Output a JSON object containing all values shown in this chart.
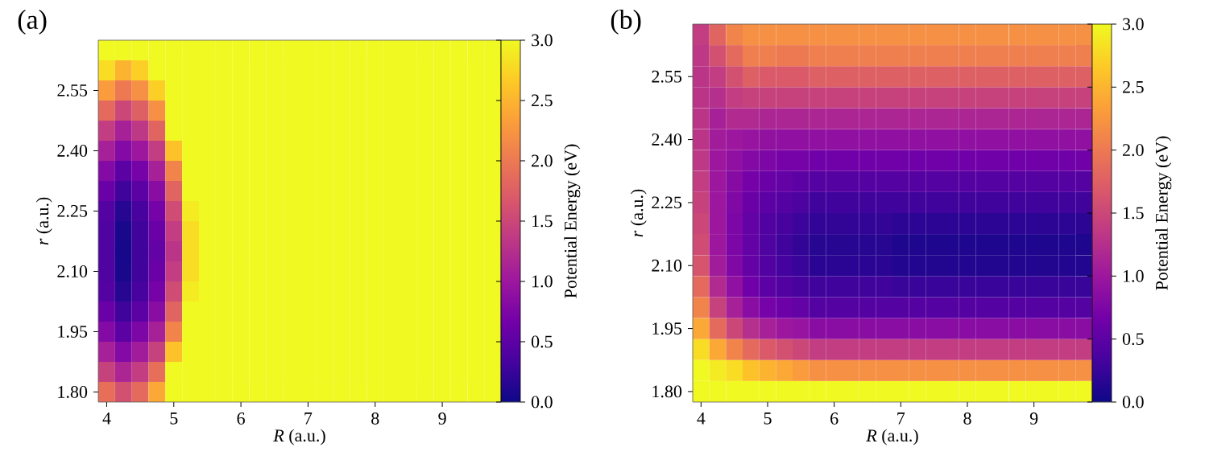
{
  "chart_data": [
    {
      "type": "heatmap",
      "title": "(a)",
      "xlabel": "*R* (a.u.)",
      "ylabel": "*r* (a.u.)",
      "clabel": "Potential Energy (eV)",
      "clim": [
        0,
        3
      ],
      "cticks": [
        {
          "value": 0,
          "label": "0.0"
        },
        0.5,
        {
          "value": 1,
          "label": "1.0"
        },
        1.5,
        {
          "value": 2,
          "label": "2.0"
        },
        2.5,
        {
          "value": 3,
          "label": "3.0"
        }
      ],
      "categories": [
        "4",
        null,
        null,
        null,
        "5",
        null,
        null,
        null,
        "6",
        null,
        null,
        null,
        "7",
        null,
        null,
        null,
        "8",
        null,
        null,
        null,
        "9",
        null,
        null,
        null
      ],
      "y_categories": [
        null,
        null,
        "2.55",
        null,
        null,
        "2.40",
        null,
        null,
        "2.25",
        null,
        null,
        "2.10",
        null,
        null,
        "1.95",
        null,
        null,
        "1.80"
      ],
      "cells": [
        [
          3.0,
          3.0,
          3.0,
          3.0,
          3.0,
          3.0,
          3.0,
          3.0,
          3.0,
          3.0,
          3.0,
          3.0,
          3.0,
          3.0,
          3.0,
          3.0,
          3.0,
          3.0,
          3.0,
          3.0,
          3.0,
          3.0,
          3.0,
          3.0
        ],
        [
          2.8,
          2.5,
          2.7,
          3.0,
          3.0,
          3.0,
          3.0,
          3.0,
          3.0,
          3.0,
          3.0,
          3.0,
          3.0,
          3.0,
          3.0,
          3.0,
          3.0,
          3.0,
          3.0,
          3.0,
          3.0,
          3.0,
          3.0,
          3.0
        ],
        [
          2.3,
          2.0,
          2.2,
          2.7,
          3.0,
          3.0,
          3.0,
          3.0,
          3.0,
          3.0,
          3.0,
          3.0,
          3.0,
          3.0,
          3.0,
          3.0,
          3.0,
          3.0,
          3.0,
          3.0,
          3.0,
          3.0,
          3.0,
          3.0
        ],
        [
          1.85,
          1.5,
          1.75,
          2.2,
          3.0,
          3.0,
          3.0,
          3.0,
          3.0,
          3.0,
          3.0,
          3.0,
          3.0,
          3.0,
          3.0,
          3.0,
          3.0,
          3.0,
          3.0,
          3.0,
          3.0,
          3.0,
          3.0,
          3.0
        ],
        [
          1.4,
          1.1,
          1.35,
          1.8,
          3.0,
          3.0,
          3.0,
          3.0,
          3.0,
          3.0,
          3.0,
          3.0,
          3.0,
          3.0,
          3.0,
          3.0,
          3.0,
          3.0,
          3.0,
          3.0,
          3.0,
          3.0,
          3.0,
          3.0
        ],
        [
          1.1,
          0.8,
          1.0,
          1.4,
          2.6,
          3.0,
          3.0,
          3.0,
          3.0,
          3.0,
          3.0,
          3.0,
          3.0,
          3.0,
          3.0,
          3.0,
          3.0,
          3.0,
          3.0,
          3.0,
          3.0,
          3.0,
          3.0,
          3.0
        ],
        [
          0.8,
          0.5,
          0.7,
          1.1,
          2.1,
          3.0,
          3.0,
          3.0,
          3.0,
          3.0,
          3.0,
          3.0,
          3.0,
          3.0,
          3.0,
          3.0,
          3.0,
          3.0,
          3.0,
          3.0,
          3.0,
          3.0,
          3.0,
          3.0
        ],
        [
          0.6,
          0.3,
          0.5,
          0.85,
          1.8,
          3.0,
          3.0,
          3.0,
          3.0,
          3.0,
          3.0,
          3.0,
          3.0,
          3.0,
          3.0,
          3.0,
          3.0,
          3.0,
          3.0,
          3.0,
          3.0,
          3.0,
          3.0,
          3.0
        ],
        [
          0.45,
          0.15,
          0.35,
          0.7,
          1.55,
          2.9,
          3.0,
          3.0,
          3.0,
          3.0,
          3.0,
          3.0,
          3.0,
          3.0,
          3.0,
          3.0,
          3.0,
          3.0,
          3.0,
          3.0,
          3.0,
          3.0,
          3.0,
          3.0
        ],
        [
          0.4,
          0.07,
          0.3,
          0.6,
          1.4,
          2.8,
          3.0,
          3.0,
          3.0,
          3.0,
          3.0,
          3.0,
          3.0,
          3.0,
          3.0,
          3.0,
          3.0,
          3.0,
          3.0,
          3.0,
          3.0,
          3.0,
          3.0,
          3.0
        ],
        [
          0.4,
          0.05,
          0.3,
          0.55,
          1.3,
          2.8,
          3.0,
          3.0,
          3.0,
          3.0,
          3.0,
          3.0,
          3.0,
          3.0,
          3.0,
          3.0,
          3.0,
          3.0,
          3.0,
          3.0,
          3.0,
          3.0,
          3.0,
          3.0
        ],
        [
          0.4,
          0.07,
          0.3,
          0.6,
          1.4,
          2.8,
          3.0,
          3.0,
          3.0,
          3.0,
          3.0,
          3.0,
          3.0,
          3.0,
          3.0,
          3.0,
          3.0,
          3.0,
          3.0,
          3.0,
          3.0,
          3.0,
          3.0,
          3.0
        ],
        [
          0.45,
          0.15,
          0.35,
          0.7,
          1.55,
          2.9,
          3.0,
          3.0,
          3.0,
          3.0,
          3.0,
          3.0,
          3.0,
          3.0,
          3.0,
          3.0,
          3.0,
          3.0,
          3.0,
          3.0,
          3.0,
          3.0,
          3.0,
          3.0
        ],
        [
          0.6,
          0.3,
          0.5,
          0.85,
          1.8,
          3.0,
          3.0,
          3.0,
          3.0,
          3.0,
          3.0,
          3.0,
          3.0,
          3.0,
          3.0,
          3.0,
          3.0,
          3.0,
          3.0,
          3.0,
          3.0,
          3.0,
          3.0,
          3.0
        ],
        [
          0.8,
          0.5,
          0.75,
          1.1,
          2.1,
          3.0,
          3.0,
          3.0,
          3.0,
          3.0,
          3.0,
          3.0,
          3.0,
          3.0,
          3.0,
          3.0,
          3.0,
          3.0,
          3.0,
          3.0,
          3.0,
          3.0,
          3.0,
          3.0
        ],
        [
          1.1,
          0.8,
          1.05,
          1.45,
          2.6,
          3.0,
          3.0,
          3.0,
          3.0,
          3.0,
          3.0,
          3.0,
          3.0,
          3.0,
          3.0,
          3.0,
          3.0,
          3.0,
          3.0,
          3.0,
          3.0,
          3.0,
          3.0,
          3.0
        ],
        [
          1.45,
          1.15,
          1.4,
          1.9,
          3.0,
          3.0,
          3.0,
          3.0,
          3.0,
          3.0,
          3.0,
          3.0,
          3.0,
          3.0,
          3.0,
          3.0,
          3.0,
          3.0,
          3.0,
          3.0,
          3.0,
          3.0,
          3.0,
          3.0
        ],
        [
          1.9,
          1.6,
          1.85,
          2.4,
          3.0,
          3.0,
          3.0,
          3.0,
          3.0,
          3.0,
          3.0,
          3.0,
          3.0,
          3.0,
          3.0,
          3.0,
          3.0,
          3.0,
          3.0,
          3.0,
          3.0,
          3.0,
          3.0,
          3.0
        ]
      ]
    },
    {
      "type": "heatmap",
      "title": "(b)",
      "xlabel": "*R* (a.u.)",
      "ylabel": "*r* (a.u.)",
      "clabel": "Potential Energy (eV)",
      "clim": [
        0,
        3
      ],
      "cticks": [
        {
          "value": 0,
          "label": "0.0"
        },
        0.5,
        {
          "value": 1,
          "label": "1.0"
        },
        1.5,
        {
          "value": 2,
          "label": "2.0"
        },
        2.5,
        {
          "value": 3,
          "label": "3.0"
        }
      ],
      "categories": [
        "4",
        null,
        null,
        null,
        "5",
        null,
        null,
        null,
        "6",
        null,
        null,
        null,
        "7",
        null,
        null,
        null,
        "8",
        null,
        null,
        null,
        "9",
        null,
        null,
        null
      ],
      "y_categories": [
        null,
        null,
        "2.55",
        null,
        null,
        "2.40",
        null,
        null,
        "2.25",
        null,
        null,
        "2.10",
        null,
        null,
        "1.95",
        null,
        null,
        "1.80"
      ],
      "cells": [
        [
          1.4,
          1.8,
          2.1,
          2.2,
          2.2,
          2.2,
          2.2,
          2.2,
          2.2,
          2.2,
          2.2,
          2.2,
          2.2,
          2.2,
          2.2,
          2.2,
          2.2,
          2.2,
          2.2,
          2.2,
          2.2,
          2.2,
          2.2,
          2.2
        ],
        [
          1.35,
          1.6,
          1.85,
          2.05,
          2.05,
          2.0,
          2.0,
          2.05,
          2.05,
          2.05,
          2.05,
          2.05,
          2.05,
          2.05,
          2.05,
          2.05,
          2.05,
          2.05,
          2.05,
          2.05,
          2.05,
          2.05,
          2.05,
          2.05
        ],
        [
          1.3,
          1.4,
          1.6,
          1.75,
          1.7,
          1.7,
          1.7,
          1.75,
          1.75,
          1.75,
          1.75,
          1.75,
          1.75,
          1.75,
          1.75,
          1.75,
          1.75,
          1.75,
          1.75,
          1.75,
          1.75,
          1.75,
          1.75,
          1.75
        ],
        [
          1.3,
          1.25,
          1.4,
          1.45,
          1.45,
          1.45,
          1.45,
          1.45,
          1.45,
          1.45,
          1.45,
          1.45,
          1.45,
          1.45,
          1.45,
          1.45,
          1.45,
          1.45,
          1.45,
          1.45,
          1.45,
          1.45,
          1.45,
          1.45
        ],
        [
          1.3,
          1.1,
          1.2,
          1.2,
          1.15,
          1.15,
          1.15,
          1.15,
          1.15,
          1.15,
          1.15,
          1.15,
          1.15,
          1.15,
          1.15,
          1.15,
          1.15,
          1.15,
          1.15,
          1.15,
          1.15,
          1.15,
          1.15,
          1.15
        ],
        [
          1.3,
          1.05,
          1.0,
          0.95,
          0.92,
          0.9,
          0.9,
          0.9,
          0.9,
          0.9,
          0.9,
          0.9,
          0.9,
          0.9,
          0.9,
          0.9,
          0.9,
          0.9,
          0.9,
          0.9,
          0.9,
          0.9,
          0.9,
          0.9
        ],
        [
          1.35,
          1.0,
          0.9,
          0.8,
          0.75,
          0.7,
          0.7,
          0.65,
          0.65,
          0.65,
          0.65,
          0.65,
          0.65,
          0.65,
          0.65,
          0.65,
          0.65,
          0.65,
          0.65,
          0.65,
          0.65,
          0.65,
          0.65,
          0.65
        ],
        [
          1.4,
          1.0,
          0.82,
          0.68,
          0.6,
          0.55,
          0.5,
          0.45,
          0.45,
          0.45,
          0.45,
          0.45,
          0.45,
          0.45,
          0.45,
          0.45,
          0.45,
          0.45,
          0.45,
          0.45,
          0.45,
          0.45,
          0.45,
          0.45
        ],
        [
          1.45,
          1.0,
          0.78,
          0.6,
          0.5,
          0.45,
          0.38,
          0.3,
          0.3,
          0.3,
          0.3,
          0.3,
          0.3,
          0.3,
          0.3,
          0.3,
          0.3,
          0.3,
          0.3,
          0.3,
          0.3,
          0.3,
          0.3,
          0.3
        ],
        [
          1.5,
          1.0,
          0.75,
          0.55,
          0.42,
          0.35,
          0.28,
          0.22,
          0.22,
          0.22,
          0.22,
          0.22,
          0.18,
          0.18,
          0.18,
          0.18,
          0.18,
          0.18,
          0.18,
          0.18,
          0.18,
          0.18,
          0.18,
          0.18
        ],
        [
          1.55,
          1.0,
          0.75,
          0.55,
          0.4,
          0.3,
          0.22,
          0.15,
          0.15,
          0.15,
          0.15,
          0.15,
          0.1,
          0.1,
          0.1,
          0.1,
          0.1,
          0.1,
          0.1,
          0.1,
          0.1,
          0.1,
          0.1,
          0.1
        ],
        [
          1.65,
          1.05,
          0.78,
          0.57,
          0.42,
          0.32,
          0.25,
          0.17,
          0.17,
          0.17,
          0.17,
          0.17,
          0.12,
          0.12,
          0.12,
          0.12,
          0.12,
          0.12,
          0.12,
          0.12,
          0.12,
          0.12,
          0.12,
          0.12
        ],
        [
          1.85,
          1.2,
          0.9,
          0.65,
          0.5,
          0.42,
          0.35,
          0.3,
          0.3,
          0.3,
          0.3,
          0.3,
          0.25,
          0.25,
          0.25,
          0.25,
          0.25,
          0.25,
          0.25,
          0.25,
          0.25,
          0.25,
          0.25,
          0.25
        ],
        [
          2.1,
          1.45,
          1.1,
          0.85,
          0.7,
          0.62,
          0.55,
          0.45,
          0.45,
          0.45,
          0.45,
          0.45,
          0.45,
          0.45,
          0.45,
          0.45,
          0.45,
          0.45,
          0.45,
          0.45,
          0.45,
          0.45,
          0.45,
          0.45
        ],
        [
          2.4,
          1.85,
          1.5,
          1.25,
          1.1,
          1.0,
          0.95,
          0.85,
          0.85,
          0.85,
          0.85,
          0.85,
          0.85,
          0.85,
          0.85,
          0.85,
          0.85,
          0.85,
          0.85,
          0.85,
          0.85,
          0.85,
          0.85,
          0.85
        ],
        [
          2.8,
          2.4,
          2.1,
          1.85,
          1.7,
          1.6,
          1.5,
          1.4,
          1.4,
          1.4,
          1.4,
          1.4,
          1.4,
          1.4,
          1.4,
          1.4,
          1.4,
          1.4,
          1.4,
          1.4,
          1.4,
          1.4,
          1.4,
          1.4
        ],
        [
          3.0,
          2.9,
          2.8,
          2.6,
          2.5,
          2.4,
          2.3,
          2.2,
          2.2,
          2.2,
          2.2,
          2.2,
          2.2,
          2.2,
          2.2,
          2.2,
          2.2,
          2.2,
          2.2,
          2.2,
          2.2,
          2.2,
          2.2,
          2.2
        ],
        [
          3.0,
          3.0,
          3.0,
          3.0,
          3.0,
          3.0,
          3.0,
          3.0,
          3.0,
          3.0,
          3.0,
          3.0,
          3.0,
          3.0,
          3.0,
          3.0,
          3.0,
          3.0,
          3.0,
          3.0,
          3.0,
          3.0,
          3.0,
          3.0
        ]
      ]
    }
  ]
}
